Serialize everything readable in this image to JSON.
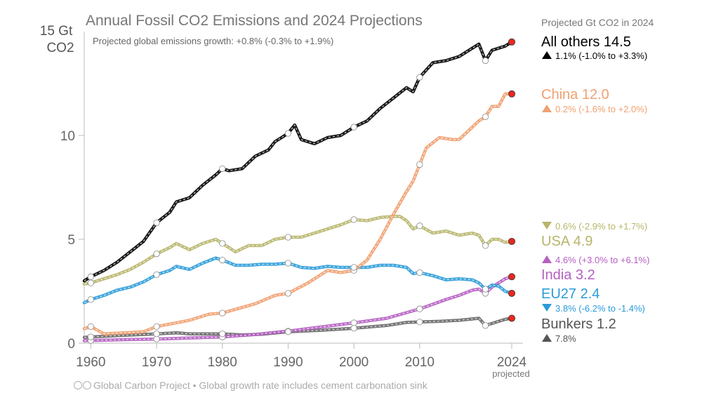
{
  "chart_data": {
    "type": "line",
    "title": "Annual Fossil CO2 Emissions and 2024 Projections",
    "subtitle": "Projected global emissions growth: +0.8% (-0.3% to +1.9%)",
    "ylabel_line1": "15 Gt",
    "ylabel_line2": "CO2",
    "ylim": [
      0,
      15
    ],
    "xlim": [
      1959,
      2024
    ],
    "yticks": [
      "0",
      "5",
      "10"
    ],
    "xticks": [
      "1960",
      "1970",
      "1980",
      "1990",
      "2000",
      "2010",
      "2024"
    ],
    "xtick_note": "projected",
    "projected_heading": "Projected Gt CO2 in 2024",
    "footer": "Global Carbon Project  •  Global growth rate includes cement carbonation sink",
    "grid": false,
    "series": [
      {
        "name": "All others",
        "value_2024": "14.5",
        "growth": "1.1% (-1.0% to +3.3%)",
        "growth_dir": "up",
        "color": "#000000",
        "values": [
          [
            1959,
            3.0
          ],
          [
            1960,
            3.2
          ],
          [
            1962,
            3.5
          ],
          [
            1964,
            3.9
          ],
          [
            1966,
            4.4
          ],
          [
            1968,
            4.9
          ],
          [
            1970,
            5.8
          ],
          [
            1972,
            6.3
          ],
          [
            1973,
            6.8
          ],
          [
            1975,
            7.0
          ],
          [
            1977,
            7.6
          ],
          [
            1979,
            8.1
          ],
          [
            1980,
            8.4
          ],
          [
            1981,
            8.3
          ],
          [
            1983,
            8.4
          ],
          [
            1985,
            9.0
          ],
          [
            1987,
            9.3
          ],
          [
            1988,
            9.7
          ],
          [
            1989,
            9.9
          ],
          [
            1990,
            10.1
          ],
          [
            1991,
            10.5
          ],
          [
            1992,
            9.8
          ],
          [
            1994,
            9.6
          ],
          [
            1996,
            9.9
          ],
          [
            1998,
            10.0
          ],
          [
            2000,
            10.4
          ],
          [
            2002,
            10.7
          ],
          [
            2004,
            11.3
          ],
          [
            2006,
            11.8
          ],
          [
            2008,
            12.3
          ],
          [
            2009,
            12.1
          ],
          [
            2010,
            12.8
          ],
          [
            2012,
            13.5
          ],
          [
            2014,
            13.6
          ],
          [
            2016,
            13.8
          ],
          [
            2018,
            14.2
          ],
          [
            2019,
            14.4
          ],
          [
            2020,
            13.6
          ],
          [
            2021,
            14.1
          ],
          [
            2023,
            14.3
          ],
          [
            2024,
            14.5
          ]
        ]
      },
      {
        "name": "China",
        "value_2024": "12.0",
        "growth": "0.2% (-1.6% to +2.0%)",
        "growth_dir": "up",
        "color": "#f0a070",
        "values": [
          [
            1959,
            0.7
          ],
          [
            1960,
            0.8
          ],
          [
            1962,
            0.45
          ],
          [
            1965,
            0.5
          ],
          [
            1968,
            0.55
          ],
          [
            1970,
            0.8
          ],
          [
            1975,
            1.1
          ],
          [
            1978,
            1.4
          ],
          [
            1980,
            1.45
          ],
          [
            1985,
            1.9
          ],
          [
            1988,
            2.3
          ],
          [
            1990,
            2.4
          ],
          [
            1993,
            2.9
          ],
          [
            1996,
            3.5
          ],
          [
            1998,
            3.4
          ],
          [
            2000,
            3.5
          ],
          [
            2002,
            4.0
          ],
          [
            2004,
            5.0
          ],
          [
            2006,
            6.2
          ],
          [
            2008,
            7.3
          ],
          [
            2009,
            7.8
          ],
          [
            2010,
            8.6
          ],
          [
            2011,
            9.4
          ],
          [
            2013,
            9.9
          ],
          [
            2015,
            9.8
          ],
          [
            2016,
            9.8
          ],
          [
            2018,
            10.4
          ],
          [
            2019,
            10.7
          ],
          [
            2020,
            10.9
          ],
          [
            2021,
            11.4
          ],
          [
            2022,
            11.4
          ],
          [
            2023,
            12.0
          ],
          [
            2024,
            12.0
          ]
        ]
      },
      {
        "name": "USA",
        "value_2024": "4.9",
        "growth": "0.6% (-2.9% to +1.7%)",
        "growth_dir": "down",
        "color": "#b7b56a",
        "values": [
          [
            1959,
            2.85
          ],
          [
            1960,
            2.9
          ],
          [
            1962,
            3.1
          ],
          [
            1964,
            3.3
          ],
          [
            1966,
            3.55
          ],
          [
            1968,
            3.9
          ],
          [
            1970,
            4.3
          ],
          [
            1972,
            4.6
          ],
          [
            1973,
            4.8
          ],
          [
            1975,
            4.5
          ],
          [
            1977,
            4.8
          ],
          [
            1979,
            5.0
          ],
          [
            1980,
            4.8
          ],
          [
            1982,
            4.4
          ],
          [
            1984,
            4.7
          ],
          [
            1986,
            4.7
          ],
          [
            1988,
            5.0
          ],
          [
            1990,
            5.1
          ],
          [
            1992,
            5.1
          ],
          [
            1994,
            5.3
          ],
          [
            1996,
            5.5
          ],
          [
            1998,
            5.7
          ],
          [
            2000,
            5.95
          ],
          [
            2002,
            5.9
          ],
          [
            2004,
            6.05
          ],
          [
            2006,
            6.1
          ],
          [
            2007,
            6.1
          ],
          [
            2008,
            5.9
          ],
          [
            2009,
            5.5
          ],
          [
            2010,
            5.65
          ],
          [
            2012,
            5.3
          ],
          [
            2014,
            5.4
          ],
          [
            2016,
            5.2
          ],
          [
            2018,
            5.3
          ],
          [
            2019,
            5.2
          ],
          [
            2020,
            4.7
          ],
          [
            2021,
            5.0
          ],
          [
            2022,
            5.0
          ],
          [
            2023,
            4.85
          ],
          [
            2024,
            4.9
          ]
        ]
      },
      {
        "name": "India",
        "value_2024": "3.2",
        "growth": "4.6% (+3.0% to +6.1%)",
        "growth_dir": "up",
        "color": "#b55fc2",
        "values": [
          [
            1959,
            0.12
          ],
          [
            1960,
            0.13
          ],
          [
            1965,
            0.17
          ],
          [
            1970,
            0.2
          ],
          [
            1975,
            0.25
          ],
          [
            1980,
            0.3
          ],
          [
            1985,
            0.42
          ],
          [
            1990,
            0.58
          ],
          [
            1995,
            0.78
          ],
          [
            2000,
            0.98
          ],
          [
            2005,
            1.2
          ],
          [
            2010,
            1.65
          ],
          [
            2014,
            2.1
          ],
          [
            2016,
            2.3
          ],
          [
            2018,
            2.55
          ],
          [
            2019,
            2.6
          ],
          [
            2020,
            2.4
          ],
          [
            2021,
            2.7
          ],
          [
            2022,
            2.9
          ],
          [
            2023,
            3.1
          ],
          [
            2024,
            3.2
          ]
        ]
      },
      {
        "name": "EU27",
        "value_2024": "2.4",
        "growth": "3.8% (-6.2% to -1.4%)",
        "growth_dir": "down",
        "color": "#2a9bd8",
        "values": [
          [
            1959,
            1.95
          ],
          [
            1960,
            2.1
          ],
          [
            1962,
            2.3
          ],
          [
            1964,
            2.55
          ],
          [
            1966,
            2.7
          ],
          [
            1968,
            2.95
          ],
          [
            1970,
            3.3
          ],
          [
            1972,
            3.5
          ],
          [
            1973,
            3.7
          ],
          [
            1975,
            3.55
          ],
          [
            1977,
            3.85
          ],
          [
            1979,
            4.1
          ],
          [
            1980,
            4.0
          ],
          [
            1982,
            3.75
          ],
          [
            1984,
            3.75
          ],
          [
            1986,
            3.8
          ],
          [
            1988,
            3.8
          ],
          [
            1990,
            3.85
          ],
          [
            1992,
            3.65
          ],
          [
            1994,
            3.6
          ],
          [
            1996,
            3.7
          ],
          [
            1998,
            3.65
          ],
          [
            2000,
            3.65
          ],
          [
            2002,
            3.65
          ],
          [
            2004,
            3.75
          ],
          [
            2006,
            3.75
          ],
          [
            2008,
            3.65
          ],
          [
            2009,
            3.35
          ],
          [
            2010,
            3.4
          ],
          [
            2012,
            3.25
          ],
          [
            2014,
            3.05
          ],
          [
            2016,
            3.1
          ],
          [
            2018,
            3.05
          ],
          [
            2019,
            2.9
          ],
          [
            2020,
            2.6
          ],
          [
            2021,
            2.8
          ],
          [
            2022,
            2.75
          ],
          [
            2023,
            2.5
          ],
          [
            2024,
            2.4
          ]
        ]
      },
      {
        "name": "Bunkers",
        "value_2024": "1.2",
        "growth": "7.8%",
        "growth_dir": "up",
        "color": "#666666",
        "values": [
          [
            1959,
            0.28
          ],
          [
            1960,
            0.3
          ],
          [
            1965,
            0.38
          ],
          [
            1970,
            0.45
          ],
          [
            1973,
            0.5
          ],
          [
            1975,
            0.45
          ],
          [
            1980,
            0.45
          ],
          [
            1983,
            0.4
          ],
          [
            1986,
            0.43
          ],
          [
            1990,
            0.55
          ],
          [
            1995,
            0.62
          ],
          [
            2000,
            0.72
          ],
          [
            2005,
            0.85
          ],
          [
            2008,
            1.0
          ],
          [
            2010,
            1.02
          ],
          [
            2013,
            1.05
          ],
          [
            2016,
            1.1
          ],
          [
            2019,
            1.2
          ],
          [
            2020,
            0.85
          ],
          [
            2021,
            0.95
          ],
          [
            2022,
            1.05
          ],
          [
            2023,
            1.15
          ],
          [
            2024,
            1.2
          ]
        ]
      }
    ],
    "open_markers": [
      {
        "series": 0,
        "years": [
          1960,
          1970,
          1980,
          1990,
          2000,
          2010,
          2020
        ]
      },
      {
        "series": 1,
        "years": [
          1960,
          1970,
          1980,
          1990,
          2000,
          2010,
          2020
        ]
      },
      {
        "series": 2,
        "years": [
          1960,
          1970,
          1980,
          1990,
          2000,
          2010,
          2020
        ]
      },
      {
        "series": 3,
        "years": [
          1960,
          1970,
          1980,
          1990,
          2000,
          2010,
          2020
        ]
      },
      {
        "series": 4,
        "years": [
          1960,
          1970,
          1980,
          1990,
          2000,
          2010,
          2020
        ]
      },
      {
        "series": 5,
        "years": [
          1960,
          1970,
          1980,
          1990,
          2000,
          2010,
          2020
        ]
      }
    ],
    "projected_marker_color": "#e8281e"
  }
}
